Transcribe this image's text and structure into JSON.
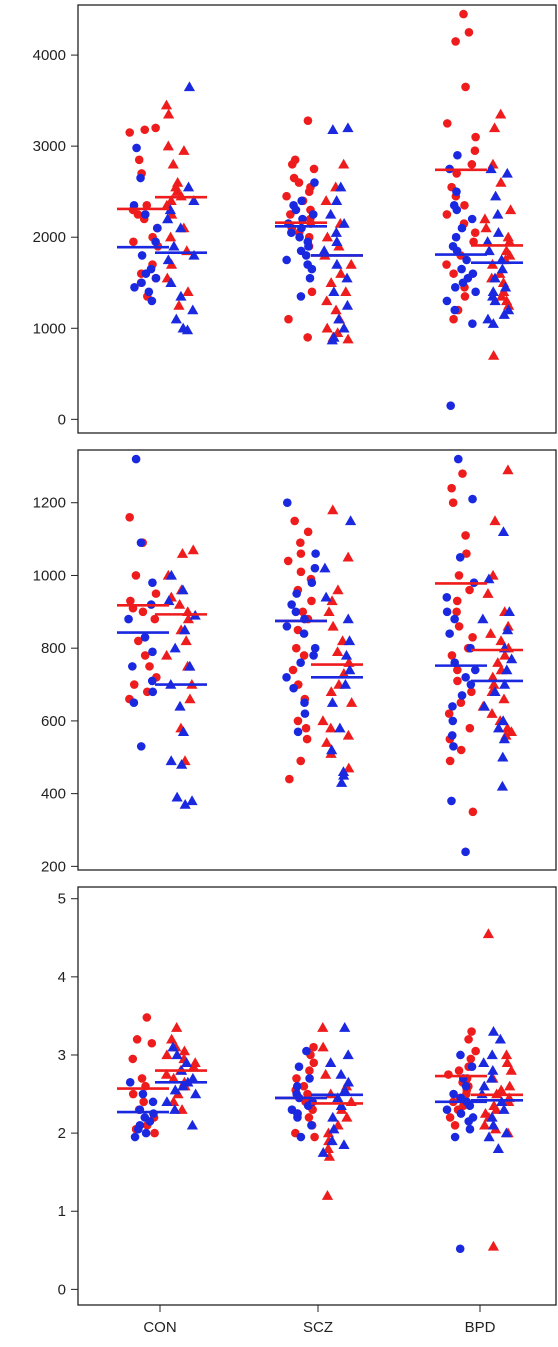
{
  "colors": {
    "red": "#ee1c1c",
    "blue": "#1a28e0",
    "frame": "#222222"
  },
  "legend": {
    "circle": "dot",
    "triangle": "triangle"
  },
  "chart_data": [
    {
      "type": "scatter",
      "panel": "top",
      "ylim": [
        -150,
        4550
      ],
      "yticks": [
        0,
        1000,
        2000,
        3000,
        4000
      ],
      "categories": [
        "CON",
        "SCZ",
        "BPD"
      ],
      "series": [
        {
          "group": "CON",
          "shape": "circle",
          "color": "red",
          "values": [
            3200,
            3150,
            3180,
            2850,
            2700,
            2350,
            2300,
            2250,
            2200,
            2100,
            2000,
            1950,
            1900,
            1700,
            1600,
            1550,
            1500,
            1350
          ],
          "mean": 2310
        },
        {
          "group": "CON",
          "shape": "circle",
          "color": "blue",
          "values": [
            2980,
            2650,
            2350,
            2250,
            2100,
            1950,
            1800,
            1650,
            1600,
            1550,
            1500,
            1450,
            1400,
            1300
          ],
          "mean": 1890
        },
        {
          "group": "CON",
          "shape": "triangle",
          "color": "red",
          "values": [
            3450,
            3350,
            3000,
            2950,
            2800,
            2600,
            2550,
            2500,
            2450,
            2400,
            2350,
            2250,
            2100,
            2000,
            1850,
            1700,
            1550,
            1400,
            1250
          ],
          "mean": 2440
        },
        {
          "group": "CON",
          "shape": "triangle",
          "color": "blue",
          "values": [
            3650,
            2550,
            2400,
            2300,
            2200,
            2100,
            1900,
            1800,
            1750,
            1500,
            1350,
            1200,
            1100,
            1000,
            980
          ],
          "mean": 1830
        },
        {
          "group": "SCZ",
          "shape": "circle",
          "color": "red",
          "values": [
            3280,
            2850,
            2800,
            2750,
            2650,
            2600,
            2550,
            2500,
            2450,
            2400,
            2300,
            2250,
            2200,
            2150,
            2100,
            2050,
            2000,
            1900,
            1400,
            1100,
            900
          ],
          "mean": 2160
        },
        {
          "group": "SCZ",
          "shape": "circle",
          "color": "blue",
          "values": [
            2600,
            2400,
            2350,
            2300,
            2250,
            2200,
            2150,
            2100,
            2050,
            2000,
            1950,
            1900,
            1850,
            1800,
            1750,
            1700,
            1650,
            1550,
            1350
          ],
          "mean": 2120
        },
        {
          "group": "SCZ",
          "shape": "triangle",
          "color": "red",
          "values": [
            2800,
            2550,
            2400,
            2150,
            2000,
            1900,
            1800,
            1700,
            1600,
            1500,
            1400,
            1300,
            1200,
            1100,
            1000,
            950,
            900,
            880
          ],
          "mean": 1800
        },
        {
          "group": "SCZ",
          "shape": "triangle",
          "color": "blue",
          "values": [
            3200,
            3180,
            2550,
            2400,
            2250,
            2150,
            2050,
            1950,
            1850,
            1700,
            1550,
            1400,
            1250,
            1100,
            1000,
            900,
            870
          ],
          "mean": 1800
        },
        {
          "group": "BPD",
          "shape": "circle",
          "color": "red",
          "values": [
            4450,
            4250,
            4150,
            3650,
            3250,
            3100,
            2950,
            2800,
            2700,
            2550,
            2450,
            2350,
            2250,
            2150,
            2050,
            1950,
            1800,
            1700,
            1600,
            1450,
            1350,
            1200,
            1100
          ],
          "mean": 2740
        },
        {
          "group": "BPD",
          "shape": "circle",
          "color": "blue",
          "values": [
            2900,
            2750,
            2500,
            2350,
            2300,
            2200,
            2100,
            2000,
            1900,
            1850,
            1750,
            1650,
            1600,
            1550,
            1500,
            1450,
            1400,
            1300,
            1200,
            1050,
            150
          ],
          "mean": 1810
        },
        {
          "group": "BPD",
          "shape": "triangle",
          "color": "red",
          "values": [
            3350,
            3200,
            2800,
            2600,
            2300,
            2200,
            2100,
            2000,
            1950,
            1850,
            1800,
            1750,
            1700,
            1600,
            1550,
            1500,
            1400,
            1350,
            1300,
            1250,
            700
          ],
          "mean": 1910
        },
        {
          "group": "BPD",
          "shape": "triangle",
          "color": "blue",
          "values": [
            2750,
            2700,
            2450,
            2250,
            2050,
            1950,
            1850,
            1750,
            1650,
            1550,
            1450,
            1400,
            1350,
            1300,
            1200,
            1150,
            1100,
            1050
          ],
          "mean": 1720
        }
      ]
    },
    {
      "type": "scatter",
      "panel": "middle",
      "ylim": [
        190,
        1345
      ],
      "yticks": [
        200,
        400,
        600,
        800,
        1000,
        1200
      ],
      "categories": [
        "CON",
        "SCZ",
        "BPD"
      ],
      "series": [
        {
          "group": "CON",
          "shape": "circle",
          "color": "red",
          "values": [
            1160,
            1090,
            1000,
            950,
            930,
            910,
            900,
            880,
            820,
            780,
            750,
            720,
            700,
            680,
            660
          ],
          "mean": 918
        },
        {
          "group": "CON",
          "shape": "circle",
          "color": "blue",
          "values": [
            1320,
            1090,
            980,
            920,
            880,
            830,
            790,
            750,
            710,
            680,
            650,
            530
          ],
          "mean": 843
        },
        {
          "group": "CON",
          "shape": "triangle",
          "color": "red",
          "values": [
            1070,
            1060,
            1000,
            960,
            940,
            920,
            900,
            880,
            850,
            820,
            780,
            750,
            700,
            660,
            580,
            490
          ],
          "mean": 893
        },
        {
          "group": "CON",
          "shape": "triangle",
          "color": "blue",
          "values": [
            1000,
            960,
            930,
            890,
            850,
            800,
            750,
            700,
            640,
            570,
            490,
            480,
            390,
            380,
            370
          ],
          "mean": 700
        },
        {
          "group": "SCZ",
          "shape": "circle",
          "color": "red",
          "values": [
            1150,
            1120,
            1090,
            1060,
            1040,
            1010,
            990,
            960,
            930,
            900,
            880,
            850,
            800,
            780,
            740,
            700,
            660,
            600,
            580,
            550,
            490,
            440
          ],
          "mean": 875
        },
        {
          "group": "SCZ",
          "shape": "circle",
          "color": "blue",
          "values": [
            1200,
            1060,
            1020,
            980,
            950,
            920,
            900,
            880,
            860,
            840,
            800,
            780,
            760,
            720,
            690,
            650,
            620,
            570
          ],
          "mean": 875
        },
        {
          "group": "SCZ",
          "shape": "triangle",
          "color": "red",
          "values": [
            1180,
            1050,
            960,
            930,
            900,
            860,
            820,
            790,
            760,
            730,
            700,
            680,
            650,
            600,
            580,
            560,
            540,
            510,
            470
          ],
          "mean": 755
        },
        {
          "group": "SCZ",
          "shape": "triangle",
          "color": "blue",
          "values": [
            1150,
            1020,
            940,
            880,
            820,
            780,
            740,
            700,
            650,
            580,
            520,
            460,
            450,
            430
          ],
          "mean": 720
        },
        {
          "group": "BPD",
          "shape": "circle",
          "color": "red",
          "values": [
            1280,
            1240,
            1200,
            1110,
            1060,
            1000,
            960,
            930,
            900,
            860,
            830,
            800,
            780,
            740,
            710,
            680,
            650,
            620,
            580,
            550,
            520,
            490,
            350
          ],
          "mean": 978
        },
        {
          "group": "BPD",
          "shape": "circle",
          "color": "blue",
          "values": [
            1320,
            1210,
            1050,
            980,
            940,
            900,
            880,
            840,
            800,
            760,
            740,
            720,
            700,
            670,
            640,
            600,
            560,
            530,
            380,
            240
          ],
          "mean": 752
        },
        {
          "group": "BPD",
          "shape": "triangle",
          "color": "red",
          "values": [
            1290,
            1150,
            1000,
            950,
            900,
            860,
            840,
            820,
            800,
            780,
            760,
            740,
            720,
            700,
            680,
            660,
            640,
            620,
            600,
            580,
            570,
            560
          ],
          "mean": 795
        },
        {
          "group": "BPD",
          "shape": "triangle",
          "color": "blue",
          "values": [
            1120,
            990,
            900,
            880,
            850,
            800,
            770,
            740,
            700,
            680,
            640,
            600,
            580,
            550,
            500,
            420
          ],
          "mean": 710
        }
      ]
    },
    {
      "type": "scatter",
      "panel": "bottom",
      "ylim": [
        -0.2,
        5.15
      ],
      "yticks": [
        0,
        1,
        2,
        3,
        4,
        5
      ],
      "categories": [
        "CON",
        "SCZ",
        "BPD"
      ],
      "series": [
        {
          "group": "CON",
          "shape": "circle",
          "color": "red",
          "values": [
            3.48,
            3.2,
            3.15,
            2.95,
            2.7,
            2.6,
            2.5,
            2.4,
            2.3,
            2.2,
            2.1,
            2.05,
            2.0
          ],
          "mean": 2.57
        },
        {
          "group": "CON",
          "shape": "circle",
          "color": "blue",
          "values": [
            2.65,
            2.5,
            2.4,
            2.3,
            2.25,
            2.2,
            2.15,
            2.1,
            2.05,
            2.0,
            1.95
          ],
          "mean": 2.27
        },
        {
          "group": "CON",
          "shape": "triangle",
          "color": "red",
          "values": [
            3.35,
            3.2,
            3.1,
            3.05,
            3.0,
            2.95,
            2.9,
            2.85,
            2.8,
            2.75,
            2.7,
            2.65,
            2.6,
            2.5,
            2.4,
            2.3
          ],
          "mean": 2.8
        },
        {
          "group": "CON",
          "shape": "triangle",
          "color": "blue",
          "values": [
            3.1,
            3.0,
            2.9,
            2.8,
            2.7,
            2.65,
            2.6,
            2.55,
            2.5,
            2.4,
            2.3,
            2.1
          ],
          "mean": 2.65
        },
        {
          "group": "SCZ",
          "shape": "circle",
          "color": "red",
          "values": [
            3.1,
            3.0,
            2.9,
            2.8,
            2.7,
            2.6,
            2.55,
            2.5,
            2.45,
            2.4,
            2.35,
            2.3,
            2.25,
            2.2,
            2.1,
            2.0,
            1.95
          ],
          "mean": 2.45
        },
        {
          "group": "SCZ",
          "shape": "circle",
          "color": "blue",
          "values": [
            3.05,
            2.85,
            2.7,
            2.6,
            2.5,
            2.45,
            2.4,
            2.35,
            2.3,
            2.25,
            2.2,
            2.1,
            1.95
          ],
          "mean": 2.45
        },
        {
          "group": "SCZ",
          "shape": "triangle",
          "color": "red",
          "values": [
            3.35,
            3.1,
            2.9,
            2.75,
            2.6,
            2.5,
            2.4,
            2.3,
            2.2,
            2.1,
            2.0,
            1.9,
            1.8,
            1.7,
            1.2
          ],
          "mean": 2.38
        },
        {
          "group": "SCZ",
          "shape": "triangle",
          "color": "blue",
          "values": [
            3.35,
            3.0,
            2.9,
            2.75,
            2.65,
            2.55,
            2.45,
            2.35,
            2.2,
            2.05,
            1.9,
            1.85,
            1.75
          ],
          "mean": 2.49
        },
        {
          "group": "BPD",
          "shape": "circle",
          "color": "red",
          "values": [
            3.3,
            3.2,
            3.05,
            2.95,
            2.85,
            2.8,
            2.75,
            2.7,
            2.65,
            2.6,
            2.55,
            2.5,
            2.45,
            2.4,
            2.35,
            2.3,
            2.2,
            2.1
          ],
          "mean": 2.73
        },
        {
          "group": "BPD",
          "shape": "circle",
          "color": "blue",
          "values": [
            3.0,
            2.85,
            2.7,
            2.6,
            2.5,
            2.45,
            2.4,
            2.35,
            2.3,
            2.25,
            2.2,
            2.15,
            2.05,
            1.95,
            0.52
          ],
          "mean": 2.4
        },
        {
          "group": "BPD",
          "shape": "triangle",
          "color": "red",
          "values": [
            4.55,
            3.0,
            2.9,
            2.8,
            2.7,
            2.6,
            2.55,
            2.5,
            2.45,
            2.4,
            2.35,
            2.3,
            2.25,
            2.2,
            2.1,
            2.05,
            2.0,
            0.55
          ],
          "mean": 2.49
        },
        {
          "group": "BPD",
          "shape": "triangle",
          "color": "blue",
          "values": [
            3.3,
            3.2,
            3.0,
            2.9,
            2.8,
            2.7,
            2.6,
            2.5,
            2.4,
            2.3,
            2.2,
            2.1,
            2.0,
            1.95,
            1.8
          ],
          "mean": 2.42
        }
      ]
    }
  ]
}
